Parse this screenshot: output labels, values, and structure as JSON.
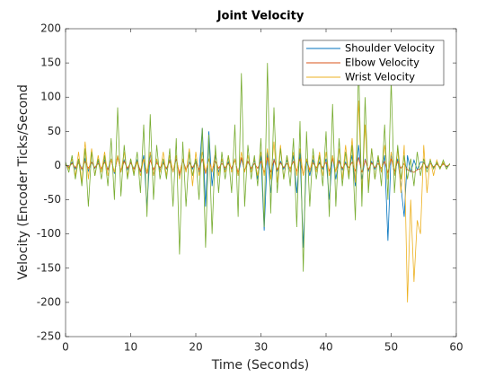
{
  "chart_data": {
    "type": "line",
    "title": "Joint Velocity",
    "xlabel": "Time (Seconds)",
    "ylabel": "Velocity (Encoder Ticks/Second",
    "x": [
      0,
      0.5,
      1,
      1.5,
      2,
      2.5,
      3,
      3.5,
      4,
      4.5,
      5,
      5.5,
      6,
      6.5,
      7,
      7.5,
      8,
      8.5,
      9,
      9.5,
      10,
      10.5,
      11,
      11.5,
      12,
      12.5,
      13,
      13.5,
      14,
      14.5,
      15,
      15.5,
      16,
      16.5,
      17,
      17.5,
      18,
      18.5,
      19,
      19.5,
      20,
      20.5,
      21,
      21.5,
      22,
      22.5,
      23,
      23.5,
      24,
      24.5,
      25,
      25.5,
      26,
      26.5,
      27,
      27.5,
      28,
      28.5,
      29,
      29.5,
      30,
      30.5,
      31,
      31.5,
      32,
      32.5,
      33,
      33.5,
      34,
      34.5,
      35,
      35.5,
      36,
      36.5,
      37,
      37.5,
      38,
      38.5,
      39,
      39.5,
      40,
      40.5,
      41,
      41.5,
      42,
      42.5,
      43,
      43.5,
      44,
      44.5,
      45,
      45.5,
      46,
      46.5,
      47,
      47.5,
      48,
      48.5,
      49,
      49.5,
      50,
      50.5,
      51,
      51.5,
      52,
      52.5,
      53,
      53.5,
      54,
      54.5,
      55,
      55.5,
      56,
      56.5,
      57,
      57.5,
      58,
      58.5,
      59
    ],
    "series": [
      {
        "name": "Shoulder Velocity",
        "color": "#0072bd",
        "values": [
          2,
          -3,
          5,
          -5,
          8,
          -6,
          10,
          -8,
          5,
          -4,
          6,
          -5,
          8,
          -6,
          10,
          -12,
          15,
          -10,
          8,
          -6,
          5,
          -5,
          8,
          -10,
          15,
          -60,
          20,
          -15,
          8,
          -6,
          5,
          -5,
          8,
          -10,
          10,
          -15,
          8,
          -6,
          5,
          -5,
          8,
          -10,
          55,
          -60,
          50,
          -30,
          15,
          -10,
          8,
          -6,
          5,
          -5,
          10,
          -15,
          10,
          -8,
          6,
          -5,
          8,
          -20,
          15,
          -95,
          20,
          -40,
          10,
          -8,
          6,
          -5,
          8,
          -10,
          15,
          -40,
          20,
          -120,
          10,
          -15,
          8,
          -6,
          5,
          -5,
          10,
          -50,
          15,
          -20,
          8,
          -6,
          5,
          -10,
          15,
          -30,
          30,
          -20,
          10,
          -8,
          6,
          -5,
          8,
          -10,
          15,
          -110,
          20,
          -15,
          10,
          -30,
          -75,
          15,
          -10,
          8,
          -6,
          5,
          5,
          -4,
          6,
          -3,
          4,
          -3,
          3,
          -2,
          2
        ]
      },
      {
        "name": "Elbow Velocity",
        "color": "#d95319",
        "values": [
          1,
          -2,
          3,
          -3,
          4,
          -5,
          6,
          -4,
          5,
          -3,
          3,
          -4,
          5,
          -6,
          8,
          -10,
          12,
          -8,
          6,
          -4,
          4,
          -5,
          6,
          -8,
          10,
          -12,
          8,
          -6,
          4,
          -3,
          3,
          -4,
          6,
          -8,
          10,
          -12,
          8,
          -6,
          4,
          -3,
          4,
          -6,
          10,
          -12,
          10,
          -8,
          6,
          -4,
          3,
          -3,
          3,
          -4,
          8,
          -10,
          12,
          -8,
          6,
          -4,
          3,
          -4,
          6,
          -10,
          12,
          -10,
          8,
          -6,
          4,
          -3,
          3,
          -4,
          6,
          -8,
          10,
          -14,
          8,
          -6,
          4,
          -3,
          3,
          -3,
          5,
          -8,
          10,
          -8,
          6,
          -4,
          3,
          -3,
          5,
          -8,
          12,
          -10,
          8,
          -6,
          4,
          -3,
          3,
          -4,
          6,
          -10,
          10,
          -8,
          6,
          -4,
          3,
          -6,
          -8,
          -10,
          -6,
          -5,
          4,
          -3,
          3,
          -2,
          2,
          -2,
          2,
          -1,
          1
        ]
      },
      {
        "name": "Wrist Velocity",
        "color": "#edb120",
        "values": [
          2,
          -5,
          10,
          -15,
          20,
          -25,
          35,
          -20,
          25,
          -15,
          15,
          -10,
          20,
          -15,
          10,
          -10,
          15,
          -10,
          20,
          -15,
          10,
          -10,
          5,
          -15,
          10,
          -10,
          20,
          -15,
          10,
          -10,
          20,
          -15,
          15,
          -10,
          15,
          -20,
          10,
          -10,
          25,
          -30,
          20,
          -15,
          20,
          -10,
          10,
          -10,
          20,
          -15,
          10,
          -10,
          15,
          -10,
          10,
          -15,
          20,
          -10,
          15,
          -10,
          10,
          -15,
          20,
          -15,
          25,
          -20,
          35,
          -25,
          30,
          -20,
          15,
          -10,
          20,
          -15,
          25,
          -15,
          10,
          -10,
          15,
          -10,
          20,
          -15,
          20,
          -15,
          15,
          -10,
          25,
          -20,
          30,
          -15,
          40,
          -25,
          95,
          -40,
          60,
          -30,
          25,
          -20,
          15,
          -10,
          30,
          -20,
          20,
          -15,
          25,
          -40,
          30,
          -200,
          -50,
          -170,
          -80,
          -100,
          30,
          -40,
          10,
          -15,
          8,
          -5,
          5,
          -5,
          3
        ]
      },
      {
        "color": "#77ac30",
        "values": [
          5,
          -10,
          15,
          -20,
          10,
          -30,
          25,
          -60,
          20,
          -15,
          10,
          -20,
          15,
          -30,
          40,
          -50,
          85,
          -45,
          30,
          -20,
          10,
          -15,
          20,
          -40,
          60,
          -75,
          75,
          -50,
          30,
          -20,
          10,
          -20,
          25,
          -60,
          40,
          -130,
          35,
          -60,
          20,
          -15,
          10,
          -50,
          55,
          -120,
          45,
          -100,
          30,
          -40,
          20,
          -20,
          15,
          -40,
          60,
          -75,
          135,
          -60,
          30,
          -20,
          15,
          -30,
          40,
          -90,
          150,
          -70,
          85,
          -40,
          25,
          -20,
          15,
          -30,
          40,
          -90,
          65,
          -155,
          50,
          -60,
          25,
          -20,
          15,
          -30,
          50,
          -75,
          90,
          -60,
          40,
          -30,
          20,
          -20,
          30,
          -80,
          150,
          -60,
          100,
          -40,
          25,
          -20,
          15,
          -30,
          60,
          -50,
          125,
          -40,
          30,
          -20,
          15,
          -20,
          10,
          -30,
          20,
          -15,
          10,
          -10,
          8,
          -5,
          5,
          -5,
          8,
          -5,
          3
        ]
      }
    ],
    "xlim": [
      0,
      60
    ],
    "xticks": [
      0,
      10,
      20,
      30,
      40,
      50,
      60
    ],
    "ylim": [
      -250,
      200
    ],
    "yticks": [
      -250,
      -200,
      -150,
      -100,
      -50,
      0,
      50,
      100,
      150,
      200
    ],
    "legend": "upper right"
  }
}
